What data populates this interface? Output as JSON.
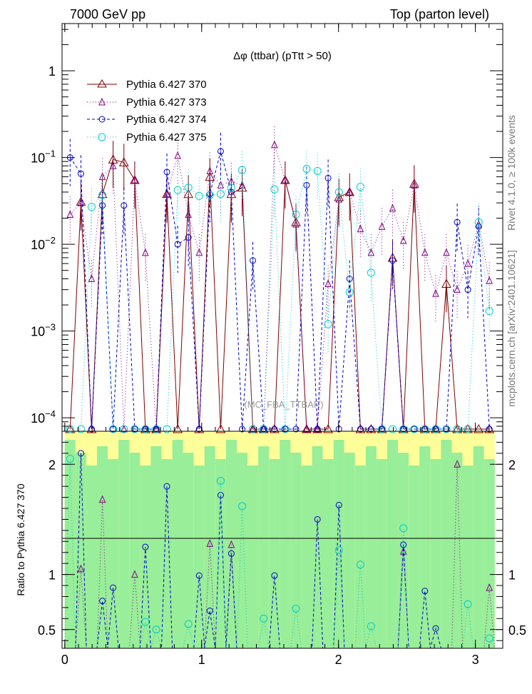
{
  "header": {
    "left": "7000 GeV pp",
    "right": "Top (parton level)",
    "side_top": "Rivet 4.1.0, ≥ 100k events",
    "side_bottom": "mcplots.cern.ch [arXiv:2401.10621]"
  },
  "colors": {
    "s370": "#800000",
    "s373": "#800080",
    "s374": "#0000cc",
    "s375": "#00cccc",
    "band_inner": "#99ee99",
    "band_outer": "#ffff99"
  },
  "chart_data": {
    "type": "line",
    "title": "Δφ (ttbar) (pTtt > 50)",
    "watermark": "(MC_FBA_TTBAR)",
    "xlabel": "",
    "ylabel_main": "",
    "ylabel_ratio": "Ratio to Pythia 6.427 370",
    "xlim": [
      -0.02,
      3.2
    ],
    "ylim_main": [
      7e-05,
      3.5
    ],
    "yscale_main": "log",
    "ylim_ratio": [
      0.33,
      2.3
    ],
    "x_ticks": [
      0,
      1,
      2,
      3
    ],
    "x_tick_labels": [
      "0",
      "1",
      "2",
      "3"
    ],
    "y_ticks_main": [
      0.0001,
      0.001,
      0.01,
      0.1,
      1
    ],
    "y_tick_labels_main": [
      "10^-4",
      "10^-3",
      "10^-2",
      "10^-1",
      "1"
    ],
    "y_ticks_ratio": [
      0.5,
      1,
      2
    ],
    "y_tick_labels_ratio": [
      "0.5",
      "1",
      "2"
    ],
    "legend_position": "top-left",
    "x": [
      0.039,
      0.118,
      0.196,
      0.275,
      0.353,
      0.432,
      0.511,
      0.589,
      0.668,
      0.746,
      0.825,
      0.903,
      0.982,
      1.06,
      1.139,
      1.217,
      1.296,
      1.374,
      1.453,
      1.532,
      1.61,
      1.689,
      1.767,
      1.846,
      1.924,
      2.003,
      2.081,
      2.16,
      2.238,
      2.317,
      2.395,
      2.474,
      2.553,
      2.631,
      2.71,
      2.788,
      2.867,
      2.945,
      3.024,
      3.102
    ],
    "series": [
      {
        "name": "Pythia 6.427 370",
        "marker": "triangle-up",
        "dash": "solid",
        "color": "#800000",
        "values": [
          0,
          0.031,
          0,
          0.038,
          0.095,
          0.088,
          0.055,
          0,
          0,
          0.038,
          0,
          0.038,
          0,
          0.06,
          0,
          0.038,
          0.045,
          0,
          0,
          0,
          0.055,
          0.018,
          0,
          0,
          0,
          0.035,
          0.04,
          0,
          0,
          0,
          0.007,
          0,
          0.05,
          0,
          0,
          0.0035,
          0,
          0,
          0,
          0
        ]
      },
      {
        "name": "Pythia 6.427 373",
        "marker": "triangle-up",
        "dash": "dotted",
        "color": "#800080",
        "values": [
          0.022,
          0.03,
          0.004,
          0.06,
          0.08,
          0,
          0.055,
          0.008,
          0,
          0.038,
          0.105,
          0.022,
          0.008,
          0.07,
          0.048,
          0.053,
          0.048,
          0,
          0,
          0.14,
          0.055,
          0.017,
          0,
          0,
          0.0035,
          0.033,
          0.04,
          0.015,
          0.008,
          0.016,
          0.026,
          0.011,
          0.048,
          0.008,
          0.0027,
          0.008,
          0.003,
          0.006,
          0.017,
          0.0038
        ]
      },
      {
        "name": "Pythia 6.427 374",
        "marker": "circle",
        "dash": "dashed",
        "color": "#0000cc",
        "values": [
          0.1,
          0.065,
          0,
          0.028,
          0,
          0.028,
          0,
          0,
          0,
          0.068,
          0.01,
          0.012,
          0,
          0.038,
          0.118,
          0.04,
          0,
          0.0065,
          0,
          0,
          0,
          0,
          0.048,
          0,
          0.058,
          0,
          0.004,
          0,
          0,
          0,
          0.0065,
          0,
          0,
          0,
          0,
          0,
          0.018,
          0.003,
          0.016,
          0
        ]
      },
      {
        "name": "Pythia 6.427 375",
        "marker": "circle",
        "dash": "dotted",
        "color": "#00cccc",
        "values": [
          0,
          0,
          0.027,
          0.037,
          0,
          0,
          0,
          0,
          0,
          0,
          0.042,
          0.045,
          0.036,
          0.037,
          0.038,
          0.045,
          0.072,
          0,
          0,
          0.043,
          0,
          0.022,
          0.074,
          0.07,
          0.0012,
          0.04,
          0.0028,
          0.046,
          0.0047,
          0,
          0,
          0,
          0,
          0,
          0,
          0,
          0,
          0,
          0.018,
          0.0017
        ]
      }
    ],
    "ratio_series": [
      {
        "name": "Pythia 6.427 373",
        "x": [
          0.118,
          0.275,
          0.511,
          1.06,
          1.217,
          2.474,
          2.867,
          3.102
        ],
        "values": [
          1.05,
          1.68,
          1.0,
          1.28,
          1.27,
          1.21,
          2.0,
          0.88
        ]
      },
      {
        "name": "Pythia 6.427 374",
        "x": [
          0.118,
          0.275,
          0.353,
          0.589,
          0.746,
          0.982,
          1.06,
          1.139,
          1.217,
          1.532,
          1.846,
          2.003,
          2.474,
          2.631,
          2.71
        ],
        "values": [
          2.1,
          0.76,
          0.88,
          1.25,
          1.8,
          0.99,
          0.67,
          1.72,
          1.19,
          0.99,
          1.5,
          1.63,
          1.27,
          0.85,
          0.51
        ]
      },
      {
        "name": "Pythia 6.427 375",
        "x": [
          0.039,
          0.589,
          0.668,
          0.903,
          1.139,
          1.296,
          1.453,
          1.689,
          2.003,
          2.16,
          2.238,
          2.474,
          2.945,
          3.102
        ],
        "values": [
          2.05,
          0.57,
          0.5,
          0.55,
          1.85,
          1.62,
          0.6,
          0.69,
          1.22,
          1.09,
          0.53,
          1.42,
          0.73,
          0.42
        ]
      }
    ]
  }
}
